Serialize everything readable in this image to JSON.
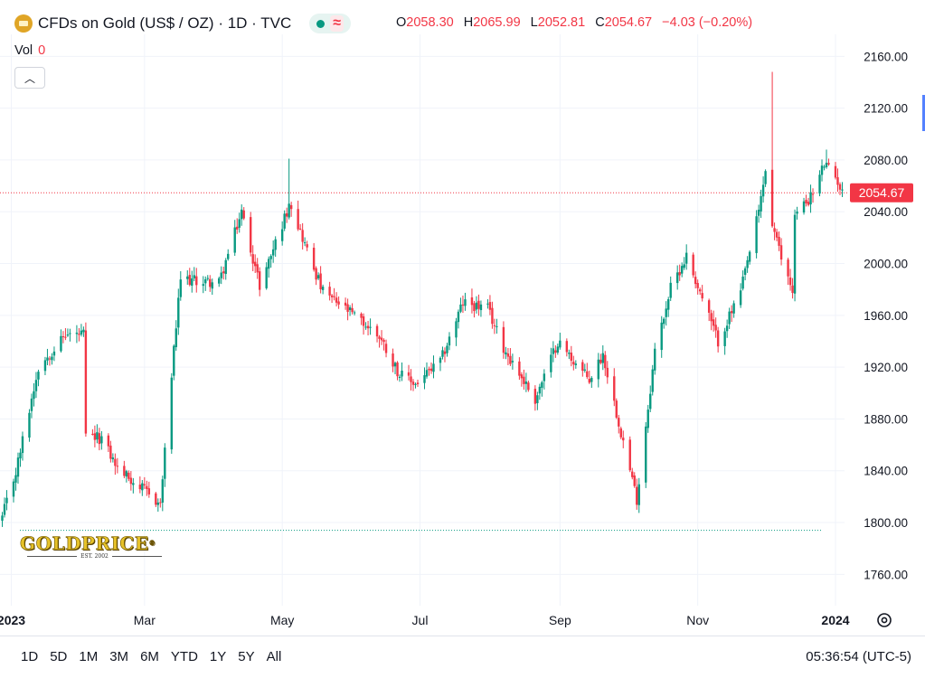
{
  "header": {
    "title": "CFDs on Gold (US$ / OZ) · 1D · TVC",
    "ohlc": [
      {
        "k": "O",
        "v": "2058.30"
      },
      {
        "k": "H",
        "v": "2065.99"
      },
      {
        "k": "L",
        "v": "2052.81"
      },
      {
        "k": "C",
        "v": "2054.67"
      }
    ],
    "change": "−4.03 (−0.20%)"
  },
  "volume": {
    "label": "Vol",
    "value": "0"
  },
  "price_label": "2054.67",
  "colors": {
    "up": "#089981",
    "down": "#f23645",
    "grid": "#f0f3fa",
    "text": "#131722",
    "price_line": "#f23645",
    "low_line": "#089981"
  },
  "logo": {
    "text": "GOLDPRICE",
    "reg": "®",
    "est": "EST. 2002"
  },
  "ranges": [
    "1D",
    "5D",
    "1M",
    "3M",
    "6M",
    "YTD",
    "1Y",
    "5Y",
    "All"
  ],
  "clock": "05:36:54 (UTC-5)",
  "icons": {
    "collapse": "chevron-up-icon",
    "settings": "gear-icon",
    "status": "market-status-icon",
    "symbol": "gold-bar-icon"
  },
  "chart_data": {
    "type": "candlestick",
    "timeframe": "1D",
    "ylim": [
      1740,
      2170
    ],
    "yticks": [
      1760,
      1800,
      1840,
      1880,
      1920,
      1960,
      2000,
      2040,
      2080,
      2120,
      2160
    ],
    "ytick_labels": [
      "1760.00",
      "1800.00",
      "1840.00",
      "1880.00",
      "1920.00",
      "1960.00",
      "2000.00",
      "2040.00",
      "2080.00",
      "2120.00",
      "2160.00"
    ],
    "xlim": [
      "2022-12-27",
      "2024-01-05"
    ],
    "xticks": [
      {
        "date": "2023-01-01",
        "label": "2023",
        "bold": true
      },
      {
        "date": "2023-03-01",
        "label": "Mar",
        "bold": false
      },
      {
        "date": "2023-05-01",
        "label": "May",
        "bold": false
      },
      {
        "date": "2023-07-01",
        "label": "Jul",
        "bold": false
      },
      {
        "date": "2023-09-01",
        "label": "Sep",
        "bold": false
      },
      {
        "date": "2023-11-01",
        "label": "Nov",
        "bold": false
      },
      {
        "date": "2024-01-01",
        "label": "2024",
        "bold": true
      }
    ],
    "last_price": 2054.67,
    "reference_line": 1794,
    "close_anchors": [
      [
        "2022-12-28",
        1804
      ],
      [
        "2023-01-03",
        1839
      ],
      [
        "2023-01-13",
        1920
      ],
      [
        "2023-01-25",
        1945
      ],
      [
        "2023-02-02",
        1945
      ],
      [
        "2023-02-03",
        1866
      ],
      [
        "2023-02-10",
        1865
      ],
      [
        "2023-02-17",
        1842
      ],
      [
        "2023-02-28",
        1826
      ],
      [
        "2023-03-08",
        1814
      ],
      [
        "2023-03-13",
        1914
      ],
      [
        "2023-03-17",
        1988
      ],
      [
        "2023-04-03",
        1985
      ],
      [
        "2023-04-13",
        2040
      ],
      [
        "2023-04-21",
        1983
      ],
      [
        "2023-05-03",
        2040
      ],
      [
        "2023-05-04",
        2050
      ],
      [
        "2023-05-12",
        2010
      ],
      [
        "2023-05-19",
        1978
      ],
      [
        "2023-05-31",
        1962
      ],
      [
        "2023-06-13",
        1944
      ],
      [
        "2023-06-22",
        1914
      ],
      [
        "2023-06-29",
        1907
      ],
      [
        "2023-07-10",
        1924
      ],
      [
        "2023-07-20",
        1970
      ],
      [
        "2023-07-31",
        1965
      ],
      [
        "2023-08-07",
        1935
      ],
      [
        "2023-08-21",
        1895
      ],
      [
        "2023-08-31",
        1940
      ],
      [
        "2023-09-14",
        1910
      ],
      [
        "2023-09-20",
        1930
      ],
      [
        "2023-10-05",
        1818
      ],
      [
        "2023-10-13",
        1932
      ],
      [
        "2023-10-20",
        1981
      ],
      [
        "2023-10-27",
        2006
      ],
      [
        "2023-11-10",
        1940
      ],
      [
        "2023-11-20",
        1978
      ],
      [
        "2023-11-28",
        2040
      ],
      [
        "2023-12-01",
        2072
      ],
      [
        "2023-12-04",
        2030
      ],
      [
        "2023-12-08",
        2004
      ],
      [
        "2023-12-13",
        1980
      ],
      [
        "2023-12-14",
        2037
      ],
      [
        "2023-12-22",
        2054
      ],
      [
        "2023-12-27",
        2077
      ],
      [
        "2024-01-02",
        2064
      ],
      [
        "2024-01-04",
        2054
      ]
    ],
    "notable_highs": [
      {
        "date": "2023-05-04",
        "high": 2081
      },
      {
        "date": "2023-12-04",
        "high": 2148
      },
      {
        "date": "2023-12-28",
        "high": 2088
      }
    ]
  }
}
